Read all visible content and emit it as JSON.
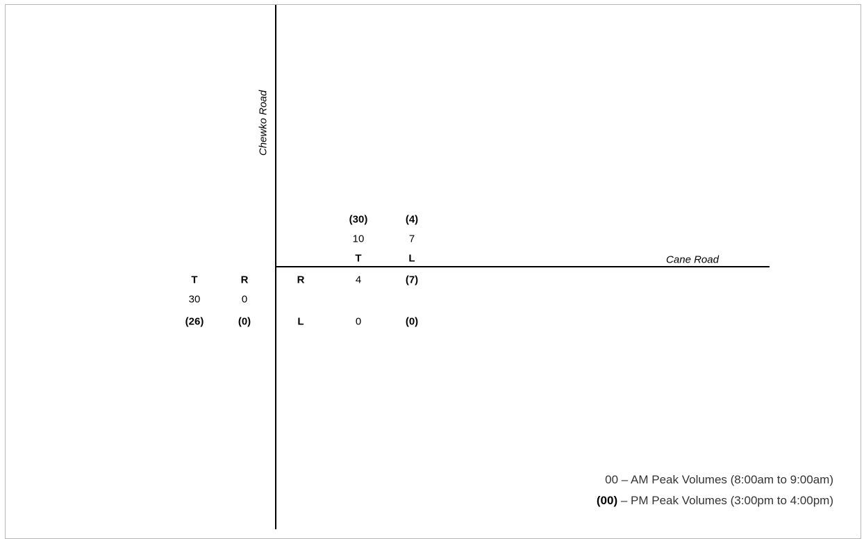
{
  "roads": {
    "north_south": "Chewko Road",
    "east_west": "Cane Road"
  },
  "north_approach": {
    "pm": [
      "(30)",
      "(4)"
    ],
    "am": [
      "10",
      "7"
    ],
    "movements": [
      "T",
      "L"
    ]
  },
  "west_approach": {
    "movements": [
      "T",
      "R"
    ],
    "am": [
      "30",
      "0"
    ],
    "pm": [
      "(26)",
      "(0)"
    ]
  },
  "east_approach": {
    "rows": [
      {
        "movement": "R",
        "am": "4",
        "pm": "(7)"
      },
      {
        "movement": "L",
        "am": "0",
        "pm": "(0)"
      }
    ]
  },
  "legend": {
    "am_key": "00",
    "am_text": " – AM Peak Volumes (8:00am to 9:00am)",
    "pm_key": "(00)",
    "pm_text": " – PM Peak Volumes (3:00pm to 4:00pm)"
  }
}
